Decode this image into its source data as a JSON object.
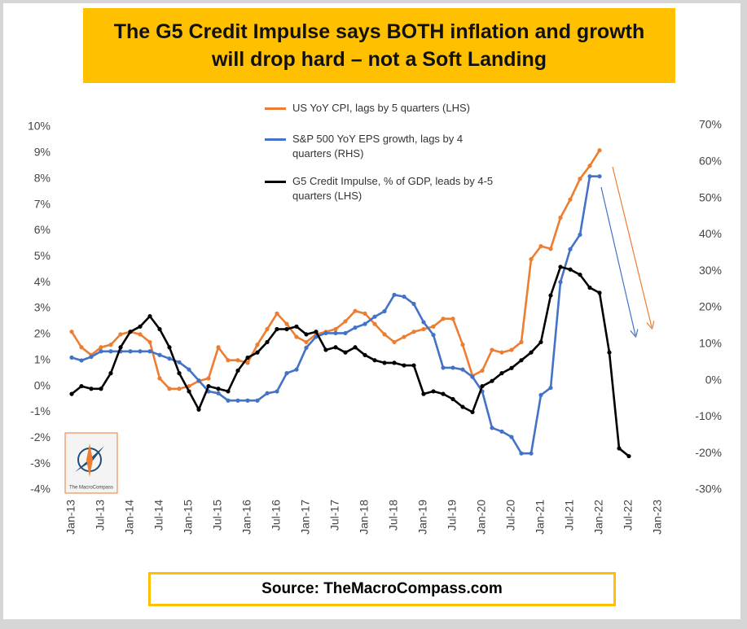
{
  "chart_data": {
    "type": "line",
    "title": "The G5 Credit Impulse says BOTH inflation and growth will drop hard – not a Soft Landing",
    "source": "Source: TheMacroCompass.com",
    "logo_text": "The MacroCompass",
    "categories": [
      "Jan-13",
      null,
      null,
      "Jul-13",
      null,
      null,
      "Jan-14",
      null,
      null,
      "Jul-14",
      null,
      null,
      "Jan-15",
      null,
      null,
      "Jul-15",
      null,
      null,
      "Jan-16",
      null,
      null,
      "Jul-16",
      null,
      null,
      "Jan-17",
      null,
      null,
      "Jul-17",
      null,
      null,
      "Jan-18",
      null,
      null,
      "Jul-18",
      null,
      null,
      "Jan-19",
      null,
      null,
      "Jul-19",
      null,
      null,
      "Jan-20",
      null,
      null,
      "Jul-20",
      null,
      null,
      "Jan-21",
      null,
      null,
      "Jul-21",
      null,
      null,
      "Jan-22",
      null,
      null,
      "Jul-22",
      null,
      null,
      "Jan-23"
    ],
    "series": [
      {
        "name": "US YoY CPI, lags by 5 quarters (LHS)",
        "color": "#ed7d31",
        "axis": "y",
        "values": [
          2.1,
          1.5,
          1.2,
          1.5,
          1.6,
          2.0,
          2.1,
          2.0,
          1.7,
          0.3,
          -0.1,
          -0.1,
          0.0,
          0.2,
          0.3,
          1.5,
          1.0,
          1.0,
          0.9,
          1.6,
          2.2,
          2.8,
          2.4,
          1.9,
          1.7,
          2.0,
          2.1,
          2.2,
          2.5,
          2.9,
          2.8,
          2.4,
          2.0,
          1.7,
          1.9,
          2.1,
          2.2,
          2.3,
          2.6,
          2.6,
          1.6,
          0.4,
          0.6,
          1.4,
          1.3,
          1.4,
          1.7,
          4.9,
          5.4,
          5.3,
          6.5,
          7.2,
          8.0,
          8.5,
          9.1,
          null,
          null,
          null,
          null,
          null,
          null
        ]
      },
      {
        "name": "S&P 500 YoY EPS growth, lags by 4 quarters (RHS)",
        "color": "#4472c4",
        "axis": "y2",
        "values": [
          6.3,
          5.5,
          6.5,
          8,
          8,
          8,
          8,
          8,
          8,
          7,
          6,
          5,
          3,
          0,
          -3,
          -3.5,
          -5.5,
          -5.5,
          -5.5,
          -5.5,
          -3.5,
          -3,
          2,
          3,
          9,
          12,
          13,
          13,
          13,
          14.5,
          15.5,
          17.5,
          19,
          23.5,
          23,
          21,
          16,
          12.5,
          3.5,
          3.5,
          3,
          1,
          -3,
          -13,
          -14,
          -15.5,
          -20,
          -20,
          -4,
          -2,
          27,
          36,
          40,
          56,
          56,
          null,
          null,
          null,
          null,
          null,
          null
        ]
      },
      {
        "name": "G5 Credit Impulse, % of GDP, leads by 4-5 quarters (LHS)",
        "color": "#000000",
        "axis": "y",
        "values": [
          -0.3,
          0.0,
          -0.1,
          -0.1,
          0.5,
          1.5,
          2.1,
          2.3,
          2.7,
          2.2,
          1.5,
          0.5,
          -0.2,
          -0.9,
          0.0,
          -0.1,
          -0.2,
          0.6,
          1.1,
          1.3,
          1.7,
          2.2,
          2.2,
          2.3,
          2.0,
          2.1,
          1.4,
          1.5,
          1.3,
          1.5,
          1.2,
          1.0,
          0.9,
          0.9,
          0.8,
          0.8,
          -0.3,
          -0.2,
          -0.3,
          -0.5,
          -0.8,
          -1.0,
          0.0,
          0.2,
          0.5,
          0.7,
          1.0,
          1.3,
          1.7,
          3.5,
          4.6,
          4.5,
          4.3,
          3.8,
          3.6,
          1.3,
          -2.4,
          -2.7,
          null,
          null,
          null
        ]
      }
    ],
    "ylim": [
      -4,
      10
    ],
    "yticks": [
      {
        "value": 10,
        "label": "10%"
      },
      {
        "value": 9,
        "label": "9%"
      },
      {
        "value": 8,
        "label": "8%"
      },
      {
        "value": 7,
        "label": "7%"
      },
      {
        "value": 6,
        "label": "6%"
      },
      {
        "value": 5,
        "label": "5%"
      },
      {
        "value": 4,
        "label": "4%"
      },
      {
        "value": 3,
        "label": "3%"
      },
      {
        "value": 2,
        "label": "2%"
      },
      {
        "value": 1,
        "label": "1%"
      },
      {
        "value": 0,
        "label": "0%"
      },
      {
        "value": -1,
        "label": "-1%"
      },
      {
        "value": -2,
        "label": "-2%"
      },
      {
        "value": -3,
        "label": "-3%"
      },
      {
        "value": -4,
        "label": "-4%"
      }
    ],
    "y2lim": [
      -30,
      70
    ],
    "y2ticks": [
      {
        "value": 70,
        "label": "70%"
      },
      {
        "value": 60,
        "label": "60%"
      },
      {
        "value": 50,
        "label": "50%"
      },
      {
        "value": 40,
        "label": "40%"
      },
      {
        "value": 30,
        "label": "30%"
      },
      {
        "value": 20,
        "label": "20%"
      },
      {
        "value": 10,
        "label": "10%"
      },
      {
        "value": 0,
        "label": "0%"
      },
      {
        "value": -10,
        "label": "-10%"
      },
      {
        "value": -20,
        "label": "-20%"
      },
      {
        "value": -30,
        "label": "-30%"
      }
    ],
    "grid": false
  }
}
